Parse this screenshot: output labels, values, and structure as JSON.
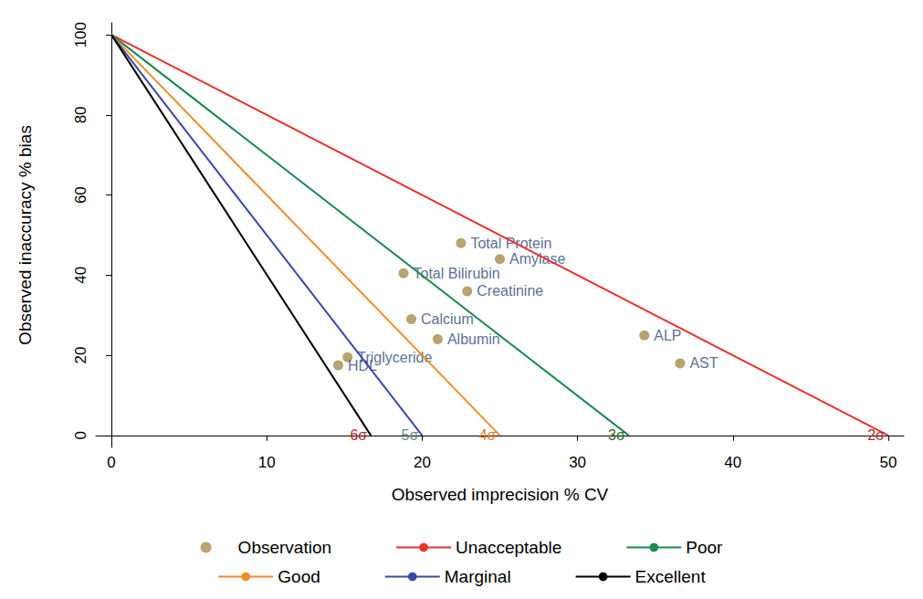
{
  "chart_data": {
    "type": "scatter",
    "x_label": "Observed imprecision % CV",
    "y_label": "Observed inaccuracy % bias",
    "xlim": [
      -1,
      51
    ],
    "xticks": [
      0,
      10,
      20,
      30,
      40,
      50
    ],
    "ylim": [
      -3,
      103
    ],
    "yticks": [
      0,
      20,
      40,
      60,
      80,
      100
    ],
    "grid": false,
    "legend": "bottom",
    "series": [
      {
        "name": "Observation",
        "type": "scatter",
        "color": "#a68d4a",
        "marker": "circle",
        "x": [
          22.5,
          25.0,
          18.8,
          22.9,
          19.3,
          21.0,
          34.3,
          36.6,
          15.2,
          14.6
        ],
        "values": [
          48,
          44,
          40.5,
          36,
          29,
          24,
          25,
          18,
          19.5,
          17.5
        ],
        "point_labels": [
          "Total Protein",
          "Amylase",
          "Total Bilirubin",
          "Creatinine",
          "Calcium",
          "Albumin",
          "ALP",
          "AST",
          "Triglyceride",
          "HDL"
        ]
      },
      {
        "name": "Unacceptable",
        "type": "line",
        "color": "#e8322a",
        "x": [
          0,
          50
        ],
        "values": [
          100,
          0
        ],
        "end_label": "2σ"
      },
      {
        "name": "Poor",
        "type": "line",
        "color": "#1b8a4c",
        "x": [
          0,
          33.3
        ],
        "values": [
          100,
          0
        ],
        "end_label": "3σ"
      },
      {
        "name": "Good",
        "type": "line",
        "color": "#f28c28",
        "x": [
          0,
          25
        ],
        "values": [
          100,
          0
        ],
        "end_label": "4σ"
      },
      {
        "name": "Marginal",
        "type": "line",
        "color": "#3a48a8",
        "x": [
          0,
          20
        ],
        "values": [
          100,
          0
        ],
        "end_label": "5σ"
      },
      {
        "name": "Excellent",
        "type": "line",
        "color": "#000000",
        "x": [
          0,
          16.7
        ],
        "values": [
          100,
          0
        ],
        "end_label": "6σ"
      }
    ]
  }
}
